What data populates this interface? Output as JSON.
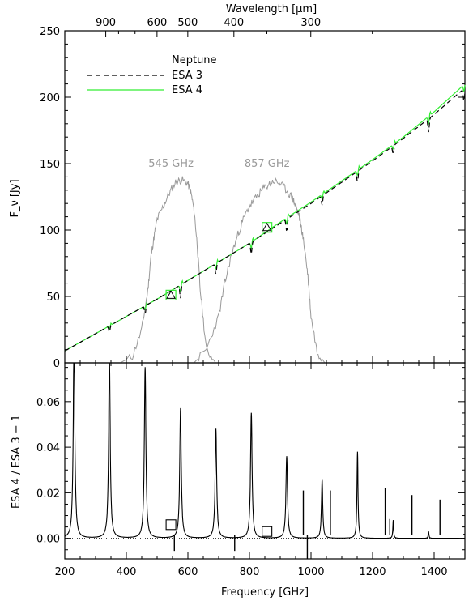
{
  "chart_data": [
    {
      "type": "line",
      "panel": "top",
      "top_axis_label": "Wavelength [μm]",
      "top_ticks": [
        {
          "wavelength": 900,
          "label": "900"
        },
        {
          "wavelength": 600,
          "label": "600"
        },
        {
          "wavelength": 500,
          "label": "500"
        },
        {
          "wavelength": 400,
          "label": "400"
        },
        {
          "wavelength": 300,
          "label": "300"
        }
      ],
      "ylabel": "F_ν [Jy]",
      "xlim": [
        200,
        1500
      ],
      "ylim": [
        0,
        250
      ],
      "yticks": [
        0,
        50,
        100,
        150,
        200,
        250
      ],
      "legend": {
        "position": "top-left",
        "title": "Neptune",
        "entries": [
          {
            "label": "ESA 3",
            "style": "dashed",
            "color": "#000000"
          },
          {
            "label": "ESA 4",
            "style": "solid",
            "color": "#33ee33"
          }
        ]
      },
      "band_labels": [
        {
          "label": "545 GHz",
          "frequency": 545,
          "flux": 150
        },
        {
          "label": "857 GHz",
          "frequency": 857,
          "flux": 150
        }
      ],
      "band_color": "#999999",
      "series": [
        {
          "name": "ESA 3",
          "color": "#000000",
          "style": "dashed",
          "x": [
            200,
            300,
            400,
            500,
            600,
            700,
            800,
            900,
            1000,
            1100,
            1200,
            1300,
            1400,
            1500
          ],
          "y": [
            9,
            22,
            35,
            48,
            62,
            76,
            90,
            105,
            120,
            136,
            152,
            169,
            187,
            207
          ]
        },
        {
          "name": "ESA 4",
          "color": "#33ee33",
          "style": "solid",
          "x": [
            200,
            300,
            400,
            500,
            600,
            700,
            800,
            900,
            1000,
            1100,
            1200,
            1300,
            1400,
            1500
          ],
          "y": [
            9,
            22,
            35,
            48,
            62,
            76,
            90,
            106,
            121,
            137,
            153,
            170,
            189,
            210
          ]
        }
      ],
      "absorption_lines": [
        {
          "x": 345,
          "depth": 5
        },
        {
          "x": 461,
          "depth": 6
        },
        {
          "x": 576,
          "depth": 10
        },
        {
          "x": 691,
          "depth": 8
        },
        {
          "x": 806,
          "depth": 9
        },
        {
          "x": 921,
          "depth": 9
        },
        {
          "x": 1036,
          "depth": 7
        },
        {
          "x": 1151,
          "depth": 8
        },
        {
          "x": 1267,
          "depth": 7
        },
        {
          "x": 1382,
          "depth": 10
        },
        {
          "x": 1497,
          "depth": 10
        }
      ],
      "markers": [
        {
          "frequency": 545,
          "flux": 51,
          "square_color": "#33ee33",
          "triangle_color": "#000000"
        },
        {
          "frequency": 857,
          "flux": 102,
          "square_color": "#33ee33",
          "triangle_color": "#000000"
        }
      ],
      "bandpass_545": {
        "frequency": [
          380,
          420,
          450,
          470,
          480,
          490,
          500,
          520,
          540,
          560,
          580,
          600,
          610,
          620,
          630,
          640,
          660,
          690
        ],
        "flux": [
          0,
          5,
          25,
          55,
          80,
          95,
          108,
          118,
          128,
          136,
          138,
          135,
          128,
          115,
          90,
          55,
          10,
          0
        ]
      },
      "bandpass_857": {
        "frequency": [
          620,
          660,
          700,
          720,
          740,
          760,
          780,
          800,
          820,
          840,
          860,
          880,
          900,
          920,
          940,
          950,
          960,
          970,
          980,
          990,
          1000,
          1020,
          1045
        ],
        "flux": [
          0,
          10,
          35,
          60,
          80,
          95,
          108,
          118,
          124,
          130,
          134,
          137,
          135,
          130,
          124,
          118,
          112,
          100,
          85,
          65,
          35,
          8,
          0
        ]
      }
    },
    {
      "type": "line",
      "panel": "bottom",
      "xlabel": "Frequency [GHz]",
      "ylabel": "ESA 4 / ESA 3 − 1",
      "xlim": [
        200,
        1500
      ],
      "ylim": [
        -0.009,
        0.077
      ],
      "xticks": [
        200,
        400,
        600,
        800,
        1000,
        1200,
        1400
      ],
      "yticks": [
        {
          "value": 0.0,
          "label": "0.00"
        },
        {
          "value": 0.02,
          "label": "0.02"
        },
        {
          "value": 0.04,
          "label": "0.04"
        },
        {
          "value": 0.06,
          "label": "0.06"
        }
      ],
      "baseline": {
        "value": 0.0,
        "style": "dotted"
      },
      "series": [
        {
          "color": "#000000",
          "resonances": [
            {
              "x": 230,
              "height": 0.09,
              "width": 3.0
            },
            {
              "x": 345,
              "height": 0.08,
              "width": 3.0
            },
            {
              "x": 461,
              "height": 0.075,
              "width": 3.0
            },
            {
              "x": 576,
              "height": 0.057,
              "width": 3.0
            },
            {
              "x": 691,
              "height": 0.048,
              "width": 3.0
            },
            {
              "x": 806,
              "height": 0.055,
              "width": 3.0
            },
            {
              "x": 921,
              "height": 0.036,
              "width": 3.0
            },
            {
              "x": 1036,
              "height": 0.026,
              "width": 2.5
            },
            {
              "x": 1151,
              "height": 0.038,
              "width": 2.0
            },
            {
              "x": 1267,
              "height": 0.008,
              "width": 1.5
            },
            {
              "x": 1382,
              "height": 0.003,
              "width": 1.5
            }
          ],
          "spikes": [
            {
              "x": 556,
              "value": -0.0055
            },
            {
              "x": 752,
              "value": -0.0055
            },
            {
              "x": 988,
              "value": -0.0095
            },
            {
              "x": 975,
              "value": 0.021
            },
            {
              "x": 1063,
              "value": 0.021
            },
            {
              "x": 1241,
              "value": 0.022
            },
            {
              "x": 1256,
              "value": 0.0085
            },
            {
              "x": 1328,
              "value": 0.019
            },
            {
              "x": 1419,
              "value": 0.017
            },
            {
              "x": 1497,
              "value": 0.002
            }
          ]
        }
      ],
      "markers": [
        {
          "frequency": 545,
          "value": 0.006
        },
        {
          "frequency": 857,
          "value": 0.003
        }
      ]
    }
  ]
}
